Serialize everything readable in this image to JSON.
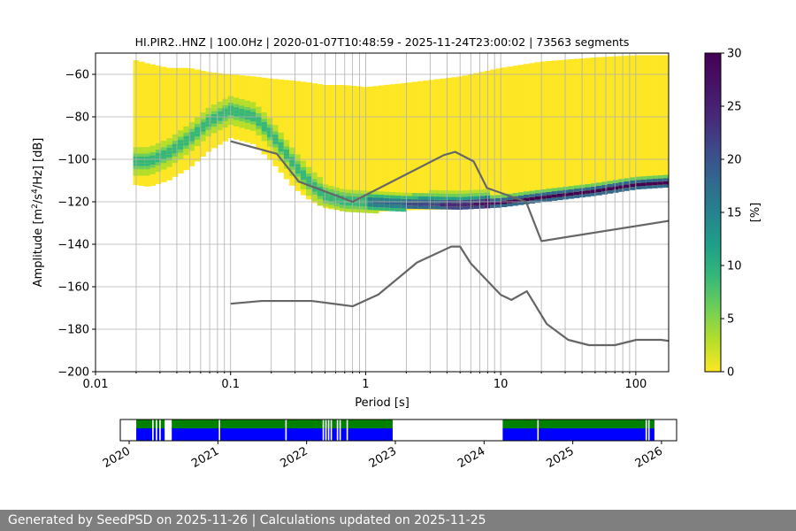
{
  "chart_data": [
    {
      "type": "heatmap",
      "title": "HI.PIR2..HNZ | 100.0Hz | 2020-01-07T10:48:59 - 2025-11-24T23:00:02 | 73563 segments",
      "xlabel": "Period [s]",
      "ylabel": "Amplitude [m2/s4/Hz] [dB]",
      "xscale": "log",
      "xlim": [
        0.01,
        175
      ],
      "ylim": [
        -200,
        -50
      ],
      "xticks": [
        0.01,
        0.1,
        1,
        10,
        100
      ],
      "xticklabels": [
        "0.01",
        "0.1",
        "1",
        "10",
        "100"
      ],
      "yticks": [
        -200,
        -180,
        -160,
        -140,
        -120,
        -100,
        -80,
        -60
      ],
      "yticklabels": [
        "−200",
        "−180",
        "−160",
        "−140",
        "−120",
        "−100",
        "−80",
        "−60"
      ],
      "grid": true,
      "colorbar": {
        "label": "[%]",
        "range": [
          0,
          30
        ],
        "ticks": [
          0,
          5,
          10,
          15,
          20,
          25,
          30
        ],
        "colormap": "viridis_r"
      },
      "psd_mode": {
        "x": [
          0.019,
          0.025,
          0.035,
          0.05,
          0.07,
          0.1,
          0.15,
          0.2,
          0.3,
          0.4,
          0.5,
          0.7,
          1,
          2,
          5,
          10,
          20,
          50,
          100,
          175
        ],
        "y": [
          -101,
          -101,
          -97,
          -90,
          -82,
          -77,
          -80,
          -88,
          -103,
          -112,
          -117,
          -119.5,
          -120,
          -121,
          -121.5,
          -120.5,
          -118,
          -115,
          -112,
          -111
        ]
      },
      "psd_envelope": {
        "lower": {
          "x": [
            0.019,
            0.025,
            0.035,
            0.05,
            0.07,
            0.1,
            0.15,
            0.2,
            0.3,
            0.4,
            0.5,
            0.7,
            1,
            2,
            5,
            10,
            20,
            50,
            100,
            175
          ],
          "y": [
            -112,
            -113,
            -110,
            -104,
            -96,
            -90,
            -93,
            -101,
            -114,
            -120,
            -123,
            -124.5,
            -125,
            -124,
            -123.5,
            -122.5,
            -120,
            -117,
            -114,
            -113
          ]
        },
        "upper": {
          "x": [
            0.019,
            0.025,
            0.035,
            0.05,
            0.07,
            0.1,
            0.15,
            0.2,
            0.3,
            0.4,
            0.5,
            0.7,
            1,
            2,
            5,
            10,
            20,
            50,
            100,
            175
          ],
          "y": [
            -53,
            -55,
            -57,
            -57,
            -59,
            -60,
            -61,
            -62,
            -63,
            -64,
            -65,
            -65,
            -66,
            -64,
            -61,
            -57,
            -54,
            -52,
            -51,
            -51
          ]
        }
      },
      "noise_models": [
        {
          "id": "new_high_noise_model",
          "x": [
            0.1,
            0.22,
            0.32,
            0.8,
            3.8,
            4.6,
            6.3,
            7.9,
            15.4,
            20,
            175
          ],
          "y": [
            -91.5,
            -97.4,
            -110.5,
            -120,
            -98,
            -96.5,
            -101,
            -113.5,
            -120,
            -138.5,
            -129
          ]
        },
        {
          "id": "new_low_noise_model",
          "x": [
            0.1,
            0.17,
            0.4,
            0.8,
            1.24,
            2.4,
            4.3,
            5,
            6,
            10,
            12,
            15.6,
            21.9,
            31.6,
            45,
            70,
            101,
            154,
            175
          ],
          "y": [
            -168,
            -166.7,
            -166.7,
            -169.2,
            -163.7,
            -148.6,
            -141.1,
            -141.1,
            -149,
            -163.8,
            -166.2,
            -162.1,
            -177.5,
            -185,
            -187.5,
            -187.5,
            -185,
            -185,
            -185.5
          ]
        }
      ]
    },
    {
      "type": "availability",
      "xticklabels": [
        "2020",
        "2021",
        "2022",
        "2023",
        "2024",
        "2025",
        "2026"
      ],
      "x_range_years": [
        2019.9,
        2026.17
      ],
      "tick_years": [
        2020,
        2021,
        2022,
        2023,
        2024,
        2025,
        2026
      ],
      "colors": {
        "data": "#0000ff",
        "metrics": "#008000",
        "gap": "#ffffff"
      },
      "segments": [
        [
          2020.08,
          2020.4
        ],
        [
          2020.48,
          2022.97
        ],
        [
          2024.21,
          2025.92
        ]
      ],
      "gaps": [
        2020.26,
        2020.3,
        2020.34,
        2021.01,
        2021.76,
        2022.18,
        2022.21,
        2022.24,
        2022.27,
        2022.34,
        2022.37,
        2022.45,
        2024.6,
        2025.82,
        2025.85
      ]
    }
  ],
  "footer": {
    "text": "Generated by SeedPSD on 2025-11-26 | Calculations updated on 2025-11-25"
  }
}
